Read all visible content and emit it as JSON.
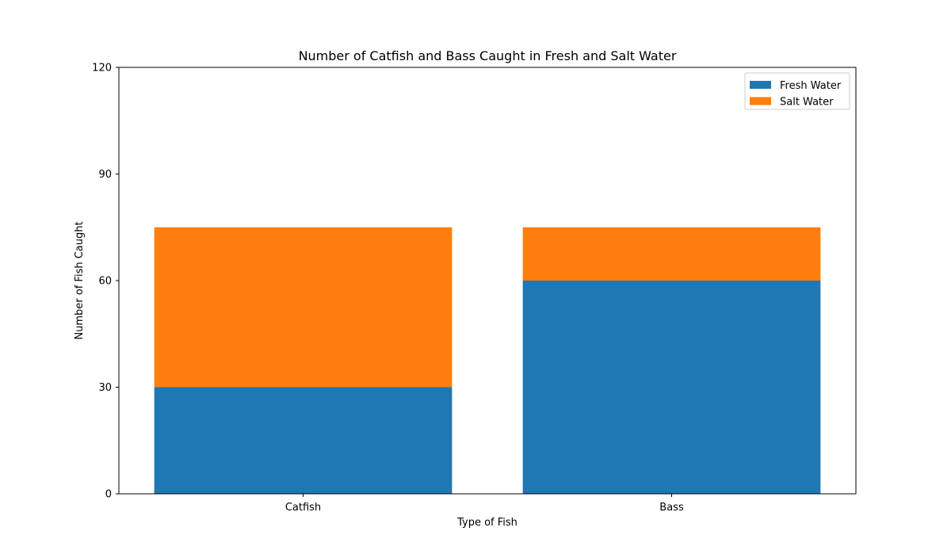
{
  "chart_data": {
    "type": "bar",
    "stacked": true,
    "title": "Number of Catfish and Bass Caught in Fresh and Salt Water",
    "xlabel": "Type of Fish",
    "ylabel": "Number of Fish Caught",
    "categories": [
      "Catfish",
      "Bass"
    ],
    "series": [
      {
        "name": "Fresh Water",
        "values": [
          30,
          60
        ],
        "color": "#1f77b4"
      },
      {
        "name": "Salt Water",
        "values": [
          45,
          15
        ],
        "color": "#ff7f0e"
      }
    ],
    "ylim": [
      0,
      120
    ],
    "yticks": [
      0,
      30,
      60,
      90,
      120
    ],
    "grid": false,
    "legend_position": "top-right"
  }
}
